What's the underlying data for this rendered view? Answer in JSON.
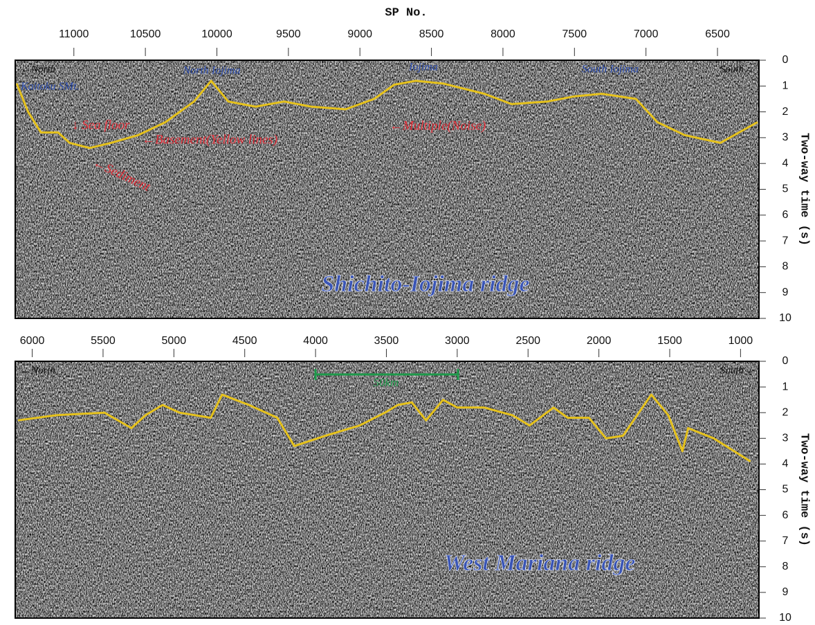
{
  "chart_data": [
    {
      "type": "seismic",
      "x_label": "SP No.",
      "y_label": "Two-way time (s)",
      "xlim": [
        11410,
        6210
      ],
      "xticks": [
        11000,
        10500,
        10000,
        9500,
        9000,
        8500,
        8000,
        7500,
        7000,
        6500
      ],
      "ylim": [
        10,
        0
      ],
      "yticks": [
        0,
        1,
        2,
        3,
        4,
        5,
        6,
        7,
        8,
        9,
        10
      ],
      "annotations": [
        "←North",
        "Kaitoku SMt.",
        "North Iojima",
        "Iojima",
        "South Iojima",
        "South→",
        "↓ Sea floor",
        "←Basement(Yellow lines)",
        "←Sediment",
        "←Multiple(Noise)",
        "Shichito-Iojima ridge"
      ],
      "series": [
        {
          "color": "#e6c21c",
          "x": [
            11400,
            11320,
            11230,
            11110,
            11030,
            10890,
            10740,
            10550,
            10360,
            10160,
            10040,
            9920,
            9730,
            9530,
            9340,
            9100,
            8900,
            8760,
            8610,
            8420,
            8130,
            7940,
            7690,
            7500,
            7310,
            7070,
            6920,
            6730,
            6480,
            6220
          ],
          "values": [
            0.9,
            2.0,
            2.8,
            2.8,
            3.2,
            3.4,
            3.2,
            2.9,
            2.4,
            1.6,
            0.8,
            1.6,
            1.8,
            1.6,
            1.8,
            1.9,
            1.5,
            0.95,
            0.8,
            0.9,
            1.3,
            1.7,
            1.6,
            1.4,
            1.3,
            1.5,
            2.4,
            2.9,
            3.2,
            2.4
          ]
        }
      ]
    },
    {
      "type": "seismic",
      "y_label": "Two-way time (s)",
      "xlim": [
        6120,
        870
      ],
      "xticks": [
        6000,
        5500,
        5000,
        4500,
        4000,
        3500,
        3000,
        2500,
        2000,
        1500,
        1000
      ],
      "ylim": [
        10,
        0
      ],
      "yticks": [
        0,
        1,
        2,
        3,
        4,
        5,
        6,
        7,
        8,
        9,
        10
      ],
      "annotations": [
        "←North",
        "South→",
        "50km",
        "West Mariana ridge"
      ],
      "series": [
        {
          "color": "#e6c21c",
          "x": [
            6100,
            5830,
            5490,
            5300,
            5200,
            5080,
            4960,
            4740,
            4660,
            4470,
            4270,
            4150,
            3930,
            3690,
            3510,
            3420,
            3320,
            3220,
            3100,
            3000,
            2810,
            2610,
            2490,
            2320,
            2220,
            2070,
            1950,
            1830,
            1630,
            1510,
            1410,
            1370,
            1190,
            930
          ],
          "values": [
            2.3,
            2.1,
            2.0,
            2.6,
            2.1,
            1.7,
            2.0,
            2.2,
            1.3,
            1.7,
            2.2,
            3.3,
            2.9,
            2.5,
            2.0,
            1.7,
            1.6,
            2.3,
            1.5,
            1.8,
            1.8,
            2.1,
            2.5,
            1.8,
            2.2,
            2.2,
            3.0,
            2.9,
            1.3,
            2.1,
            3.5,
            2.6,
            3.0,
            3.9
          ]
        }
      ]
    }
  ]
}
